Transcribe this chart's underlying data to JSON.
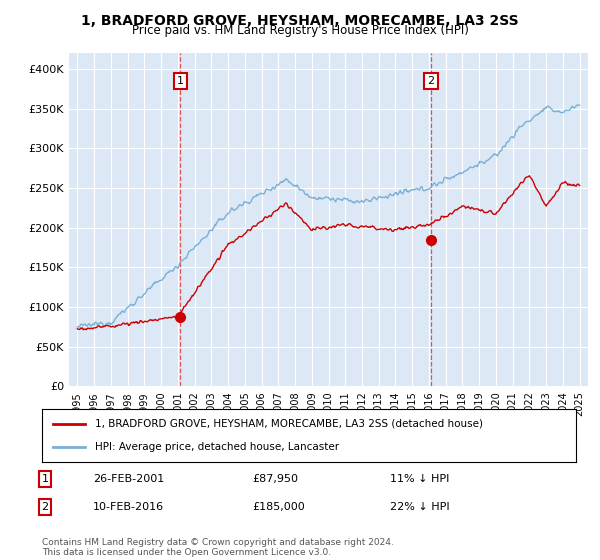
{
  "title": "1, BRADFORD GROVE, HEYSHAM, MORECAMBE, LA3 2SS",
  "subtitle": "Price paid vs. HM Land Registry's House Price Index (HPI)",
  "legend_label_red": "1, BRADFORD GROVE, HEYSHAM, MORECAMBE, LA3 2SS (detached house)",
  "legend_label_blue": "HPI: Average price, detached house, Lancaster",
  "point1_label": "1",
  "point1_date": "26-FEB-2001",
  "point1_price": "£87,950",
  "point1_hpi": "11% ↓ HPI",
  "point1_year": 2001.15,
  "point1_value": 87950,
  "point2_label": "2",
  "point2_date": "10-FEB-2016",
  "point2_price": "£185,000",
  "point2_hpi": "22% ↓ HPI",
  "point2_year": 2016.12,
  "point2_value": 185000,
  "footer": "Contains HM Land Registry data © Crown copyright and database right 2024.\nThis data is licensed under the Open Government Licence v3.0.",
  "ylim": [
    0,
    420000
  ],
  "yticks": [
    0,
    50000,
    100000,
    150000,
    200000,
    250000,
    300000,
    350000,
    400000
  ],
  "ytick_labels": [
    "£0",
    "£50K",
    "£100K",
    "£150K",
    "£200K",
    "£250K",
    "£300K",
    "£350K",
    "£400K"
  ],
  "plot_bg_color": "#dce8f5",
  "red_color": "#cc0000",
  "blue_color": "#7ab0d4",
  "dashed_color": "#dd4444"
}
